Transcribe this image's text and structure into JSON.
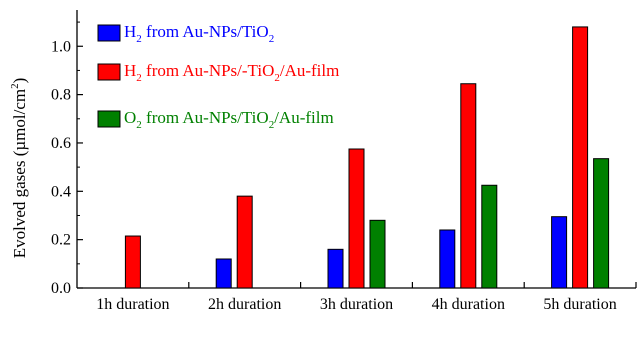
{
  "chart_data": {
    "type": "bar",
    "categories": [
      "1h duration",
      "2h duration",
      "3h duration",
      "4h duration",
      "5h duration"
    ],
    "series": [
      {
        "name": "H2 from Au-NPs/TiO2",
        "color": "#0000ff",
        "values": [
          0.0,
          0.12,
          0.16,
          0.24,
          0.295
        ]
      },
      {
        "name": "H2 from Au-NPs/-TiO2/Au-film",
        "color": "#ff0000",
        "values": [
          0.215,
          0.38,
          0.575,
          0.845,
          1.08
        ]
      },
      {
        "name": "O2 from Au-NPs/TiO2/Au-film",
        "color": "#008000",
        "values": [
          0.0,
          0.0,
          0.28,
          0.425,
          0.535
        ]
      }
    ],
    "ylabel": "Evolved gases (µmol/cm2)",
    "ylim": [
      0.0,
      1.15
    ],
    "yticks": [
      "0.0",
      "0.2",
      "0.4",
      "0.6",
      "0.8",
      "1.0"
    ],
    "legend_position": "top-left",
    "grid": false
  },
  "legend": [
    {
      "species": "H",
      "species_sub": "2",
      "text": " from Au-NPs/TiO",
      "text_sub": "2",
      "tail": "",
      "color": "#0000ff"
    },
    {
      "species": "H",
      "species_sub": "2",
      "text": " from Au-NPs/-TiO",
      "text_sub": "2",
      "tail": "/Au-film",
      "color": "#ff0000"
    },
    {
      "species": "O",
      "species_sub": "2",
      "text": " from Au-NPs/TiO",
      "text_sub": "2",
      "tail": "/Au-film",
      "color": "#008000"
    }
  ],
  "ylabel_parts": {
    "main": "Evolved gases (µmol/cm",
    "sup": "2",
    "end": ")"
  }
}
